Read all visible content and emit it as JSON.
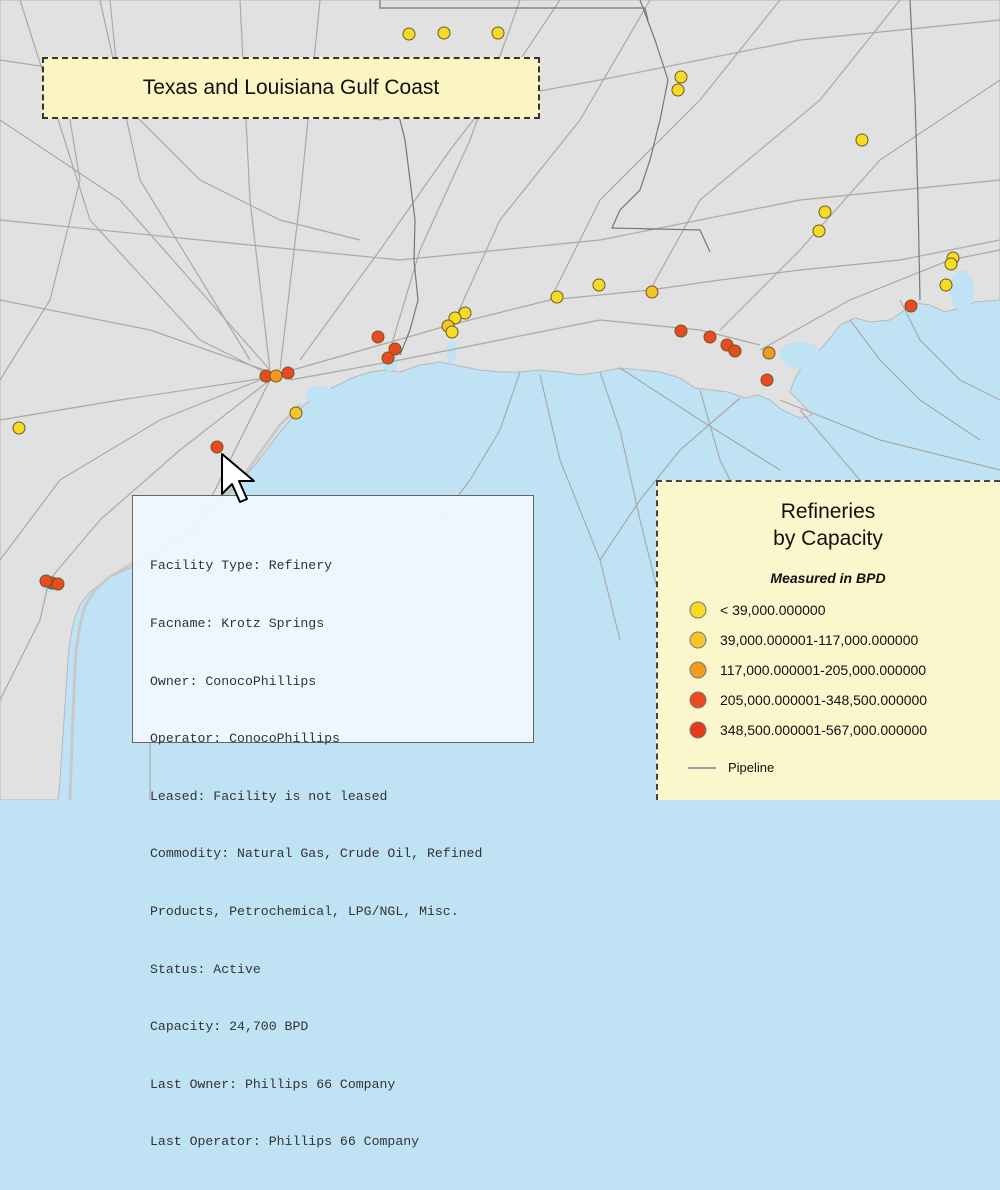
{
  "map": {
    "title": "Texas and Louisiana Gulf Coast",
    "colors": {
      "land": "#e1e1e1",
      "water": "#bfe3f5",
      "pipeline": "#a9a9a9",
      "boundary": "#777777",
      "class1": "#f6dc25",
      "class2": "#f7c528",
      "class3": "#f49a1e",
      "class4": "#ea4a1f",
      "class5": "#e63a1a"
    },
    "refineries": [
      {
        "id": "r1",
        "cls": 1
      },
      {
        "id": "r2",
        "cls": 1
      },
      {
        "id": "r3",
        "cls": 1
      },
      {
        "id": "r4",
        "cls": 1
      },
      {
        "id": "r5",
        "cls": 1
      },
      {
        "id": "r6",
        "cls": 1
      },
      {
        "id": "r7",
        "cls": 1
      },
      {
        "id": "r8",
        "cls": 1
      },
      {
        "id": "r9",
        "cls": 1
      },
      {
        "id": "r10",
        "cls": 1
      },
      {
        "id": "r11",
        "cls": 1
      },
      {
        "id": "r12",
        "cls": 1
      },
      {
        "id": "r13",
        "cls": 2
      },
      {
        "id": "r14",
        "cls": 1
      },
      {
        "id": "r15",
        "cls": 1
      },
      {
        "id": "r16",
        "cls": 1
      },
      {
        "id": "r17",
        "cls": 2
      },
      {
        "id": "r18",
        "cls": 1
      },
      {
        "id": "r19",
        "cls": 4
      },
      {
        "id": "r20",
        "cls": 4
      },
      {
        "id": "r21",
        "cls": 4
      },
      {
        "id": "r22",
        "cls": 4
      },
      {
        "id": "r23",
        "cls": 3
      },
      {
        "id": "r24",
        "cls": 4
      },
      {
        "id": "r25",
        "cls": 4
      },
      {
        "id": "r26",
        "cls": 4
      },
      {
        "id": "r27",
        "cls": 4
      },
      {
        "id": "r28",
        "cls": 4
      },
      {
        "id": "r29",
        "cls": 4
      },
      {
        "id": "r30",
        "cls": 2
      },
      {
        "id": "r31",
        "cls": 1
      },
      {
        "id": "r32",
        "cls": 4
      },
      {
        "id": "r33",
        "cls": 3
      },
      {
        "id": "r34",
        "cls": 4
      },
      {
        "id": "r35",
        "cls": 4
      }
    ]
  },
  "popup": {
    "lines": [
      "Facility Type: Refinery",
      "Facname: Krotz Springs",
      "Owner: ConocoPhillips",
      "Operator: ConocoPhillips",
      "Leased: Facility is not leased",
      "Commodity: Natural Gas, Crude Oil, Refined",
      "Products, Petrochemical, LPG/NGL, Misc.",
      "Status: Active",
      "Capacity: 24,700 BPD",
      "Last Owner: Phillips 66 Company",
      "Last Operator: Phillips 66 Company"
    ]
  },
  "legend": {
    "title_line1": "Refineries",
    "title_line2": "by Capacity",
    "subtitle": "Measured in BPD",
    "items": [
      {
        "label": "< 39,000.000000",
        "color": "#f6dc25"
      },
      {
        "label": "39,000.000001-117,000.000000",
        "color": "#f7c528"
      },
      {
        "label": "117,000.000001-205,000.000000",
        "color": "#f49a1e"
      },
      {
        "label": "205,000.000001-348,500.000000",
        "color": "#ea4a1f"
      },
      {
        "label": "348,500.000001-567,000.000000",
        "color": "#e63a1a"
      }
    ],
    "pipeline_label": "Pipeline"
  },
  "icons": {
    "cursor": "arrow-cursor-icon"
  }
}
